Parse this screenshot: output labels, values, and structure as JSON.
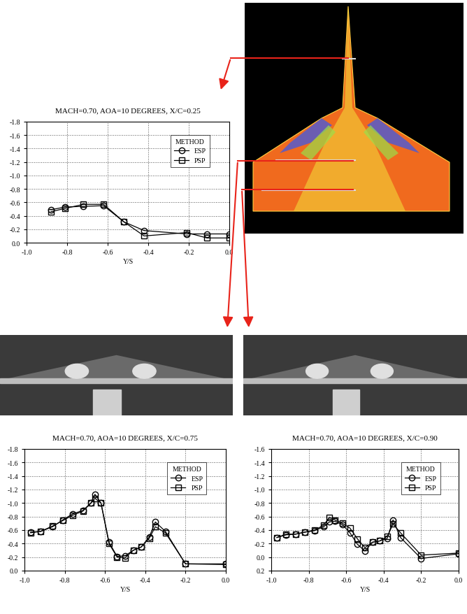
{
  "chart_data": [
    {
      "type": "line",
      "title": "MACH=0.70, AOA=10 DEGREES, X/C=0.25",
      "x_label": "Y/S",
      "x": [
        -0.88,
        -0.81,
        -0.72,
        -0.62,
        -0.52,
        -0.42,
        -0.21,
        -0.11,
        0.0
      ],
      "series": [
        {
          "name": "ESP",
          "color": "#000000",
          "marker": "circle",
          "line_style": "solid",
          "values": [
            -0.49,
            -0.53,
            -0.54,
            -0.55,
            -0.31,
            -0.18,
            -0.13,
            -0.13,
            -0.13
          ]
        },
        {
          "name": "PSP",
          "color": "#000000",
          "marker": "square",
          "line_style": "solid",
          "values": [
            -0.46,
            -0.51,
            -0.57,
            -0.57,
            -0.31,
            -0.1,
            -0.15,
            -0.07,
            -0.07
          ]
        }
      ],
      "xlim": [
        -1.0,
        0.0
      ],
      "ylim": [
        0.0,
        -1.8
      ],
      "xticks": [
        -1.0,
        -0.8,
        -0.6,
        -0.4,
        -0.2,
        0.0
      ],
      "yticks": [
        -1.8,
        -1.6,
        -1.4,
        -1.2,
        -1.0,
        -0.8,
        -0.6,
        -0.4,
        -0.2,
        0.0
      ],
      "grid": true,
      "legend": "upper right",
      "legend_title": "METHOD"
    },
    {
      "type": "line",
      "title": "MACH=0.70, AOA=10 DEGREES, X/C=0.75",
      "x_label": "Y/S",
      "x": [
        -0.97,
        -0.92,
        -0.86,
        -0.81,
        -0.76,
        -0.71,
        -0.67,
        -0.65,
        -0.62,
        -0.58,
        -0.54,
        -0.5,
        -0.46,
        -0.42,
        -0.38,
        -0.35,
        -0.3,
        -0.2,
        0.0
      ],
      "series": [
        {
          "name": "ESP",
          "color": "#000000",
          "marker": "circle",
          "line_style": "solid",
          "values": [
            -0.57,
            -0.58,
            -0.65,
            -0.75,
            -0.84,
            -0.89,
            -1.0,
            -1.13,
            -1.0,
            -0.42,
            -0.21,
            -0.22,
            -0.3,
            -0.35,
            -0.5,
            -0.72,
            -0.58,
            -0.1,
            -0.1
          ]
        },
        {
          "name": "PSP",
          "color": "#000000",
          "marker": "square",
          "line_style": "solid",
          "values": [
            -0.56,
            -0.58,
            -0.66,
            -0.74,
            -0.82,
            -0.88,
            -1.0,
            -1.07,
            -1.0,
            -0.4,
            -0.2,
            -0.19,
            -0.3,
            -0.35,
            -0.48,
            -0.65,
            -0.56,
            -0.1,
            -0.09
          ]
        }
      ],
      "xlim": [
        -1.0,
        0.0
      ],
      "ylim": [
        0.0,
        -1.8
      ],
      "xticks": [
        -1.0,
        -0.8,
        -0.6,
        -0.4,
        -0.2,
        0.0
      ],
      "yticks": [
        -1.8,
        -1.6,
        -1.4,
        -1.2,
        -1.0,
        -0.8,
        -0.6,
        -0.4,
        -0.2,
        0.0
      ],
      "grid": true,
      "legend": "upper right",
      "legend_title": "METHOD"
    },
    {
      "type": "line",
      "title": "MACH=0.70, AOA=10 DEGREES, X/C=0.90",
      "x_label": "Y/S",
      "x": [
        -0.97,
        -0.92,
        -0.87,
        -0.82,
        -0.77,
        -0.72,
        -0.69,
        -0.66,
        -0.62,
        -0.58,
        -0.54,
        -0.5,
        -0.46,
        -0.42,
        -0.38,
        -0.35,
        -0.31,
        -0.2,
        0.0
      ],
      "series": [
        {
          "name": "ESP",
          "color": "#000000",
          "marker": "circle",
          "line_style": "solid",
          "values": [
            -0.29,
            -0.33,
            -0.34,
            -0.37,
            -0.39,
            -0.45,
            -0.52,
            -0.53,
            -0.48,
            -0.36,
            -0.19,
            -0.09,
            -0.22,
            -0.24,
            -0.28,
            -0.55,
            -0.29,
            0.02,
            -0.05
          ]
        },
        {
          "name": "PSP",
          "color": "#000000",
          "marker": "square",
          "line_style": "solid",
          "values": [
            -0.29,
            -0.34,
            -0.34,
            -0.37,
            -0.4,
            -0.47,
            -0.59,
            -0.55,
            -0.5,
            -0.43,
            -0.27,
            -0.14,
            -0.22,
            -0.24,
            -0.31,
            -0.49,
            -0.36,
            -0.03,
            -0.06
          ]
        }
      ],
      "xlim": [
        -1.0,
        0.0
      ],
      "ylim": [
        0.2,
        -1.6
      ],
      "xticks": [
        -1.0,
        -0.8,
        -0.6,
        -0.4,
        -0.2,
        0.0
      ],
      "yticks": [
        -1.6,
        -1.4,
        -1.2,
        -1.0,
        -0.8,
        -0.6,
        -0.4,
        -0.2,
        0.0,
        0.2
      ],
      "grid": true,
      "legend": "upper right",
      "legend_title": "METHOD"
    }
  ]
}
